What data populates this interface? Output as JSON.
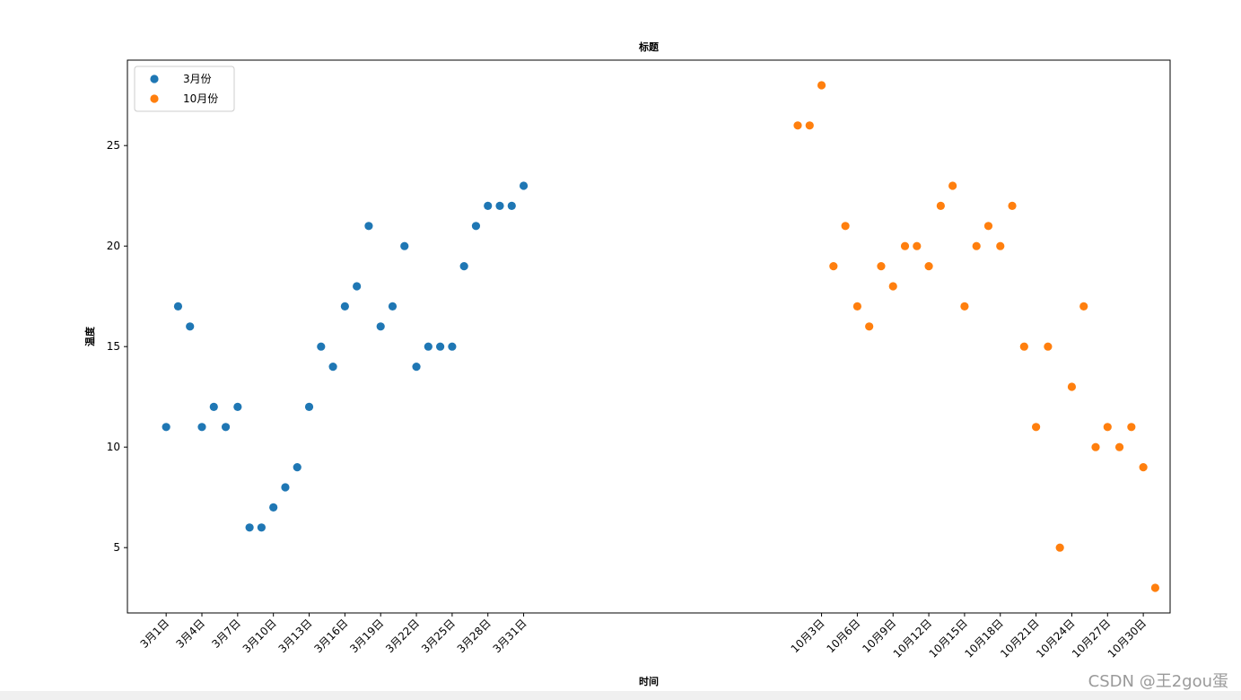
{
  "watermark": "CSDN @王2gou蛋",
  "chart_data": {
    "type": "scatter",
    "title": "标题",
    "xlabel": "时间",
    "ylabel": "温度",
    "yticks": [
      5,
      10,
      15,
      20,
      25
    ],
    "ylim": [
      1.75,
      29.25
    ],
    "xlim": [
      -3.25,
      84.25
    ],
    "legend": "top-left",
    "grid": false,
    "series": [
      {
        "name": "3月份",
        "color": "#1f77b4",
        "x": [
          "3月1日",
          "3月2日",
          "3月3日",
          "3月4日",
          "3月5日",
          "3月6日",
          "3月7日",
          "3月8日",
          "3月9日",
          "3月10日",
          "3月11日",
          "3月12日",
          "3月13日",
          "3月14日",
          "3月15日",
          "3月16日",
          "3月17日",
          "3月18日",
          "3月19日",
          "3月20日",
          "3月21日",
          "3月22日",
          "3月23日",
          "3月24日",
          "3月25日",
          "3月26日",
          "3月27日",
          "3月28日",
          "3月29日",
          "3月30日",
          "3月31日"
        ],
        "y": [
          11,
          17,
          16,
          11,
          12,
          11,
          12,
          6,
          6,
          7,
          8,
          9,
          12,
          15,
          14,
          17,
          18,
          21,
          16,
          17,
          20,
          14,
          15,
          15,
          15,
          19,
          21,
          22,
          22,
          22,
          23
        ]
      },
      {
        "name": "10月份",
        "color": "#ff7f0e",
        "x": [
          "10月1日",
          "10月2日",
          "10月3日",
          "10月4日",
          "10月5日",
          "10月6日",
          "10月7日",
          "10月8日",
          "10月9日",
          "10月10日",
          "10月11日",
          "10月12日",
          "10月13日",
          "10月14日",
          "10月15日",
          "10月16日",
          "10月17日",
          "10月18日",
          "10月19日",
          "10月20日",
          "10月21日",
          "10月22日",
          "10月23日",
          "10月24日",
          "10月25日",
          "10月26日",
          "10月27日",
          "10月28日",
          "10月29日",
          "10月30日",
          "10月31日"
        ],
        "y": [
          26,
          26,
          28,
          19,
          21,
          17,
          16,
          19,
          18,
          20,
          20,
          19,
          22,
          23,
          17,
          20,
          21,
          20,
          22,
          15,
          11,
          15,
          5,
          13,
          17,
          10,
          11,
          10,
          11,
          9,
          3
        ]
      }
    ],
    "xtick_labels": [
      "3月1日",
      "3月4日",
      "3月7日",
      "3月10日",
      "3月13日",
      "3月16日",
      "3月19日",
      "3月22日",
      "3月25日",
      "3月28日",
      "3月31日",
      "10月3日",
      "10月6日",
      "10月9日",
      "10月12日",
      "10月15日",
      "10月18日",
      "10月21日",
      "10月24日",
      "10月27日",
      "10月30日"
    ]
  }
}
